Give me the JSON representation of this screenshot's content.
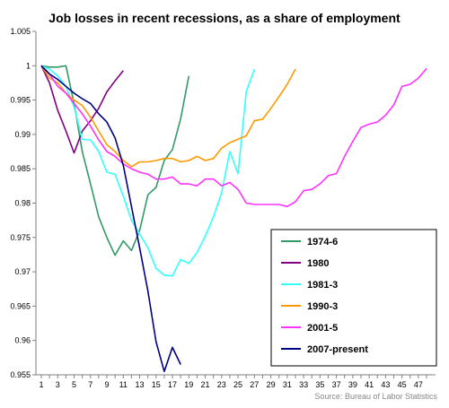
{
  "chart_data": {
    "type": "line",
    "title": "Job losses in recent recessions, as a share of employment",
    "source": "Source: Bureau of Labor Statistics",
    "xlabel": "",
    "ylabel": "",
    "xlim": [
      1,
      48
    ],
    "ylim": [
      0.955,
      1.005
    ],
    "x_ticks": [
      1,
      3,
      5,
      7,
      9,
      11,
      13,
      15,
      17,
      19,
      21,
      23,
      25,
      27,
      29,
      31,
      33,
      35,
      37,
      39,
      41,
      43,
      45,
      47
    ],
    "y_ticks": [
      0.955,
      0.96,
      0.965,
      0.97,
      0.975,
      0.98,
      0.985,
      0.99,
      0.995,
      1,
      1.005
    ],
    "y_tick_labels": [
      "0.955",
      "0.96",
      "0.965",
      "0.97",
      "0.975",
      "0.98",
      "0.985",
      "0.99",
      "0.995",
      "1",
      "1.005"
    ],
    "grid": false,
    "legend_placement": "lower-right",
    "series": [
      {
        "name": "1974-6",
        "color": "#339966",
        "values": [
          1.0,
          0.9998,
          0.9998,
          1.0,
          0.9945,
          0.9875,
          0.9828,
          0.978,
          0.975,
          0.9724,
          0.9745,
          0.9731,
          0.976,
          0.9812,
          0.9823,
          0.9862,
          0.9878,
          0.9923,
          0.9985
        ]
      },
      {
        "name": "1980",
        "color": "#800080",
        "values": [
          1.0,
          0.9975,
          0.9935,
          0.9905,
          0.9873,
          0.9905,
          0.992,
          0.9938,
          0.9962,
          0.9978,
          0.9993
        ]
      },
      {
        "name": "1981-3",
        "color": "#33FFFF",
        "values": [
          1.0,
          0.9995,
          0.9985,
          0.997,
          0.994,
          0.9893,
          0.9892,
          0.9875,
          0.9845,
          0.9842,
          0.981,
          0.9775,
          0.9755,
          0.9735,
          0.9705,
          0.9695,
          0.9694,
          0.9718,
          0.9712,
          0.9728,
          0.9752,
          0.978,
          0.9815,
          0.9875,
          0.9843,
          0.9962,
          0.9995
        ]
      },
      {
        "name": "1990-3",
        "color": "#FF9900",
        "values": [
          1.0,
          0.9982,
          0.9975,
          0.996,
          0.995,
          0.9942,
          0.9925,
          0.9905,
          0.9885,
          0.9875,
          0.9862,
          0.9853,
          0.986,
          0.986,
          0.9862,
          0.9865,
          0.9865,
          0.986,
          0.9862,
          0.9868,
          0.9862,
          0.9865,
          0.988,
          0.9888,
          0.9893,
          0.9898,
          0.992,
          0.9922,
          0.9938,
          0.9955,
          0.9973,
          0.9995
        ]
      },
      {
        "name": "2001-5",
        "color": "#FF33FF",
        "values": [
          1.0,
          0.9988,
          0.997,
          0.996,
          0.9945,
          0.993,
          0.9912,
          0.9892,
          0.9875,
          0.9868,
          0.9857,
          0.985,
          0.9845,
          0.9842,
          0.9835,
          0.9835,
          0.9838,
          0.9828,
          0.9828,
          0.9825,
          0.9835,
          0.9835,
          0.9825,
          0.983,
          0.982,
          0.98,
          0.9798,
          0.9798,
          0.9798,
          0.9798,
          0.9795,
          0.9802,
          0.9818,
          0.982,
          0.9828,
          0.984,
          0.9843,
          0.9868,
          0.989,
          0.991,
          0.9915,
          0.9918,
          0.9928,
          0.9943,
          0.997,
          0.9973,
          0.9982,
          0.9996
        ]
      },
      {
        "name": "2007-present",
        "color": "#000080",
        "values": [
          1.0,
          0.9988,
          0.998,
          0.997,
          0.996,
          0.9952,
          0.9945,
          0.993,
          0.9918,
          0.9895,
          0.9855,
          0.9795,
          0.9735,
          0.9672,
          0.9598,
          0.9555,
          0.959,
          0.9565
        ]
      }
    ]
  }
}
